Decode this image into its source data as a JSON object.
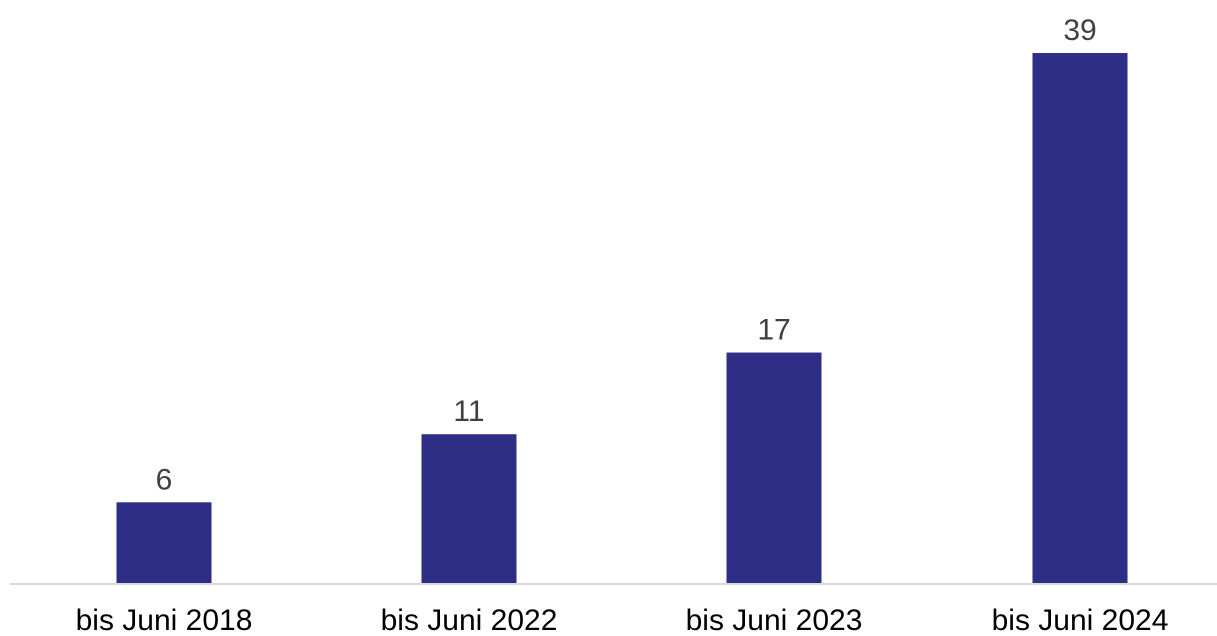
{
  "chart_data": {
    "type": "bar",
    "categories": [
      "bis Juni 2018",
      "bis Juni 2022",
      "bis Juni 2023",
      "bis Juni 2024"
    ],
    "values": [
      6,
      11,
      17,
      39
    ],
    "data_labels": [
      "6",
      "11",
      "17",
      "39"
    ],
    "ylim": [
      0,
      39
    ],
    "grid": false,
    "legend": "none",
    "bar_color": "#2e2e86"
  }
}
